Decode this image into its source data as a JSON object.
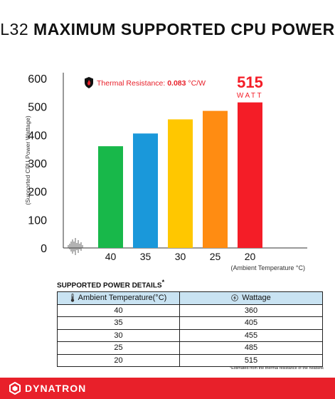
{
  "header": {
    "model": "L32",
    "title_rest": "MAXIMUM SUPPORTED CPU POWER"
  },
  "chart_data": {
    "type": "bar",
    "categories": [
      "40",
      "35",
      "30",
      "25",
      "20"
    ],
    "values": [
      360,
      405,
      455,
      485,
      515
    ],
    "colors": [
      "#18b84a",
      "#1a98da",
      "#ffc700",
      "#ff8c12",
      "#f41d27"
    ],
    "ylabel": "(Supported CPU Power Wattage)",
    "xlabel": "(Ambient Temperature °C)",
    "ylim": [
      0,
      600
    ],
    "yticks": [
      0,
      100,
      200,
      300,
      400,
      500,
      600
    ],
    "grid": false,
    "callout": {
      "value": "515",
      "unit": "WATT",
      "color": "#f41d27"
    },
    "annotation": {
      "label": "Thermal Resistance: ",
      "value": "0.083",
      "unit": " °C/W",
      "color": "#e8202a",
      "icon": "flame-shield-icon"
    }
  },
  "details": {
    "heading": "SUPPORTED POWER DETAILS",
    "heading_mark": "*",
    "headers": {
      "temperature": "Ambient Temperature(°C)",
      "wattage": "Wattage"
    },
    "header_bg": "#c9e3f2",
    "rows": [
      {
        "temperature": "40",
        "wattage": "360"
      },
      {
        "temperature": "35",
        "wattage": "405"
      },
      {
        "temperature": "30",
        "wattage": "455"
      },
      {
        "temperature": "25",
        "wattage": "485"
      },
      {
        "temperature": "20",
        "wattage": "515"
      }
    ],
    "footnote": "*Estimated from the thermal resistance of the heatsink"
  },
  "footer": {
    "brand": "DYNATRON",
    "color": "#e8202a"
  }
}
